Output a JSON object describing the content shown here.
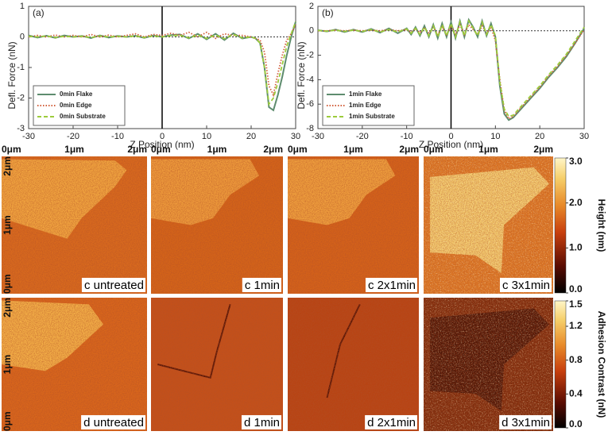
{
  "chart_data": [
    {
      "type": "line",
      "panel_label": "(a)",
      "xlabel": "Z Position (nm)",
      "ylabel": "Defl. Force (nN)",
      "xlim": [
        -30,
        30
      ],
      "ylim": [
        -3,
        1
      ],
      "xticks": [
        -30,
        -20,
        -10,
        0,
        10,
        20,
        30
      ],
      "yticks": [
        -3,
        -2,
        -1,
        0,
        1
      ],
      "legend": "lower left",
      "x": [
        -30,
        -28,
        -26,
        -24,
        -22,
        -20,
        -18,
        -16,
        -14,
        -12,
        -10,
        -8,
        -6,
        -4,
        -2,
        0,
        2,
        4,
        6,
        8,
        10,
        12,
        14,
        16,
        18,
        20,
        21,
        22,
        23,
        24,
        25,
        26,
        27,
        28,
        29,
        30
      ],
      "series": [
        {
          "name": "0min Flake",
          "color": "#5e8c6e",
          "style": "solid",
          "values": [
            0.05,
            -0.02,
            0.04,
            -0.03,
            0.05,
            0,
            0.03,
            -0.04,
            0.05,
            -0.02,
            0.03,
            0,
            0.04,
            -0.03,
            0.05,
            0,
            0.06,
            0.08,
            -0.05,
            0.1,
            -0.08,
            0.1,
            -0.1,
            0.12,
            -0.05,
            0,
            -0.05,
            -0.2,
            -1.0,
            -2.3,
            -2.4,
            -1.9,
            -1.3,
            -0.6,
            0,
            0.5
          ]
        },
        {
          "name": "0min Edge",
          "color": "#d2603c",
          "style": "dotted",
          "values": [
            0,
            0.05,
            0,
            0.06,
            0,
            0.05,
            0,
            0.08,
            0,
            0.06,
            0,
            0.05,
            0.1,
            0,
            0.08,
            0.05,
            0.12,
            0.05,
            0.15,
            0,
            0.15,
            -0.05,
            0.1,
            0.05,
            0.05,
            0,
            -0.05,
            -0.1,
            -0.5,
            -1.6,
            -1.9,
            -1.2,
            -0.6,
            -0.1,
            0.1,
            0.4
          ]
        },
        {
          "name": "0min Substrate",
          "color": "#9ccc3c",
          "style": "dashed",
          "values": [
            0.02,
            0,
            0.03,
            -0.02,
            0.02,
            0,
            0.02,
            -0.02,
            0.03,
            0,
            0.02,
            0,
            0.03,
            -0.02,
            0.03,
            0,
            0.04,
            0.05,
            -0.03,
            0.06,
            -0.05,
            0.06,
            -0.06,
            0.08,
            -0.03,
            0,
            -0.05,
            -0.2,
            -1.0,
            -2.2,
            -2.0,
            -1.5,
            -0.9,
            -0.3,
            0.1,
            0.5
          ]
        }
      ]
    },
    {
      "type": "line",
      "panel_label": "(b)",
      "xlabel": "Z Position (nm)",
      "ylabel": "Defl. Force (nN)",
      "xlim": [
        -30,
        30
      ],
      "ylim": [
        -8,
        2
      ],
      "xticks": [
        -30,
        -20,
        -10,
        0,
        10,
        20,
        30
      ],
      "yticks": [
        -8,
        -6,
        -4,
        -2,
        0,
        2
      ],
      "legend": "lower left",
      "x": [
        -30,
        -28,
        -26,
        -24,
        -22,
        -20,
        -18,
        -16,
        -14,
        -12,
        -10,
        -9,
        -8,
        -7,
        -6,
        -5,
        -4,
        -3,
        -2,
        -1,
        0,
        1,
        2,
        3,
        4,
        5,
        6,
        7,
        8,
        9,
        10,
        11,
        12,
        13,
        14,
        15,
        16,
        18,
        20,
        22,
        24,
        26,
        28,
        30
      ],
      "series": [
        {
          "name": "1min Flake",
          "color": "#5e8c6e",
          "style": "solid",
          "values": [
            0.05,
            -0.05,
            0.1,
            -0.1,
            0.1,
            -0.1,
            0.15,
            -0.15,
            0.2,
            -0.2,
            0.2,
            -0.3,
            0.3,
            -0.4,
            0.4,
            -0.5,
            0.5,
            -0.6,
            0.6,
            -0.5,
            0.7,
            -0.6,
            0.8,
            -0.5,
            0.9,
            0.3,
            -0.5,
            0.8,
            -0.4,
            0.6,
            -0.5,
            -4.5,
            -6.8,
            -7.3,
            -7.1,
            -6.7,
            -6.3,
            -5.5,
            -4.7,
            -3.8,
            -3.0,
            -2.1,
            -1.0,
            0.2
          ]
        },
        {
          "name": "1min Edge",
          "color": "#d2603c",
          "style": "dotted",
          "values": [
            0,
            0,
            0.05,
            0,
            0.05,
            0,
            0.05,
            0,
            0.1,
            0,
            0.1,
            -0.1,
            0.15,
            -0.15,
            0.2,
            -0.2,
            0.3,
            -0.3,
            0.3,
            -0.3,
            0.4,
            -0.3,
            0.5,
            -0.3,
            0.5,
            0.1,
            -0.3,
            0.4,
            -0.2,
            0.3,
            -0.8,
            -4.0,
            -6.5,
            -7.2,
            -7.0,
            -6.6,
            -6.2,
            -5.4,
            -4.6,
            -3.7,
            -2.9,
            -2.0,
            -1.0,
            0.1
          ]
        },
        {
          "name": "1min Substrate",
          "color": "#9ccc3c",
          "style": "dashed",
          "values": [
            0.03,
            -0.03,
            0.05,
            -0.05,
            0.05,
            -0.05,
            0.1,
            -0.1,
            0.1,
            -0.1,
            0.15,
            -0.2,
            0.2,
            -0.3,
            0.3,
            -0.4,
            0.4,
            -0.5,
            0.5,
            -0.4,
            0.6,
            -0.5,
            0.7,
            -0.4,
            0.8,
            0.2,
            -0.4,
            0.7,
            -0.3,
            0.5,
            -0.4,
            -4.2,
            -6.4,
            -7.0,
            -6.9,
            -6.5,
            -6.1,
            -5.3,
            -4.5,
            -3.6,
            -2.8,
            -1.9,
            -0.8,
            0.3
          ]
        }
      ]
    }
  ],
  "images": {
    "x_labels": [
      "0μm",
      "1μm",
      "2μm"
    ],
    "y_labels": [
      "2μm",
      "1μm",
      "0μm"
    ],
    "panels": [
      "c untreated",
      "c 1min",
      "c 2x1min",
      "c 3x1min",
      "d untreated",
      "d 1min",
      "d 2x1min",
      "d 3x1min"
    ]
  },
  "colorbars": [
    {
      "label": "Height (nm)",
      "lim": [
        0,
        3
      ],
      "ticks": [
        {
          "value": 0,
          "label": "0.0"
        },
        {
          "value": 1,
          "label": "1.0"
        },
        {
          "value": 2,
          "label": "2.0"
        },
        {
          "value": 3,
          "label": "3.0"
        }
      ]
    },
    {
      "label": "Adhesion Contrast (nN)",
      "lim": [
        0,
        1.5
      ],
      "ticks": [
        {
          "value": 0,
          "label": "0.0"
        },
        {
          "value": 0.4,
          "label": "0.4"
        },
        {
          "value": 0.8,
          "label": "0.8"
        },
        {
          "value": 1.2,
          "label": "1.2"
        },
        {
          "value": 1.5,
          "label": "1.5"
        }
      ]
    }
  ]
}
